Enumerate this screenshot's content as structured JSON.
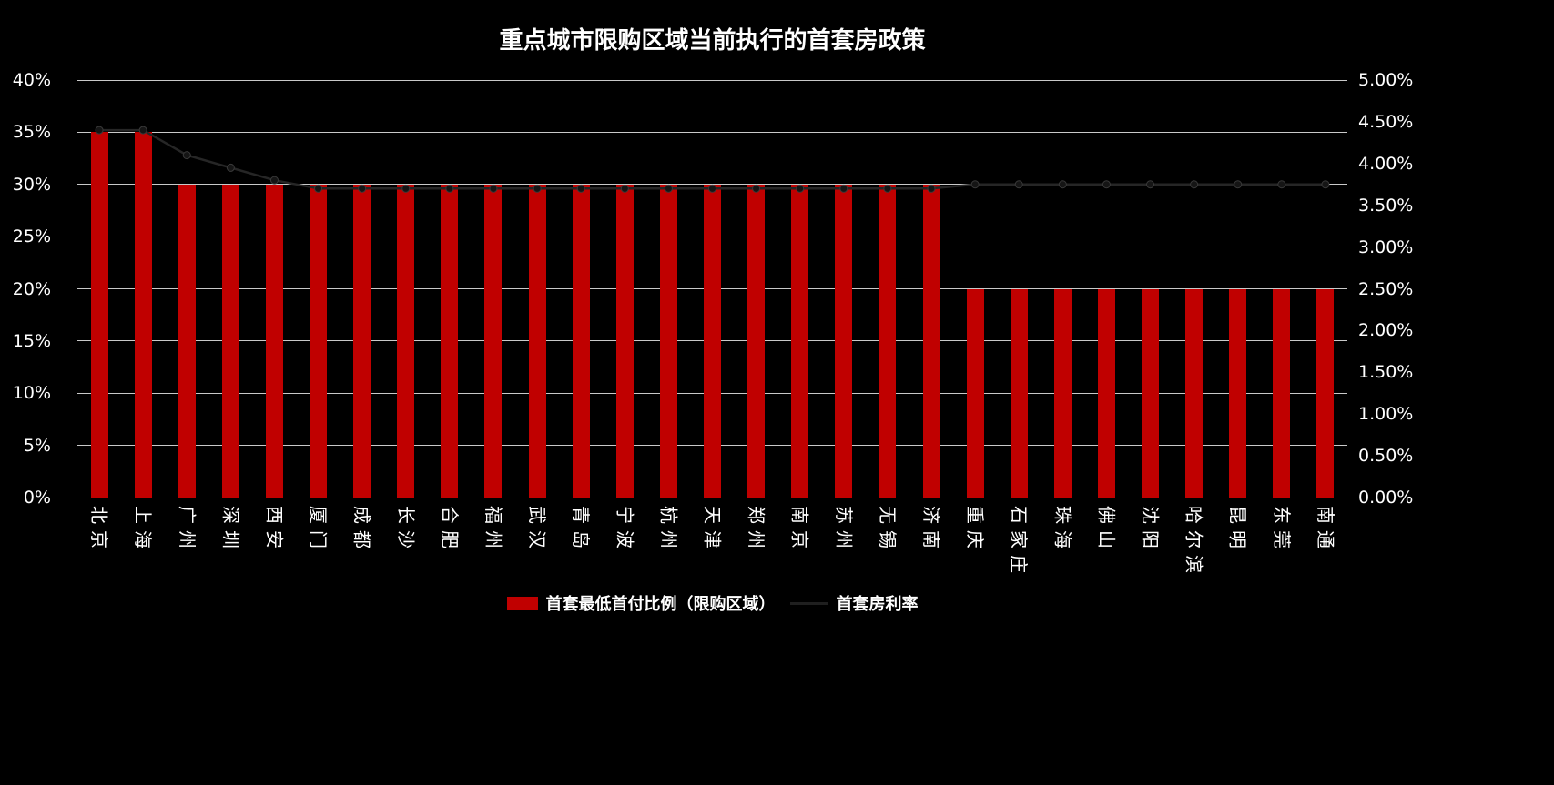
{
  "page": {
    "background_color": "#000000",
    "text_color": "#FFFFFF"
  },
  "colors": {
    "bar": "#C00000",
    "rate_line": "#262626",
    "gridline": "#C9C9C9"
  },
  "legend": {
    "items": [
      {
        "label": "首套最低首付比例（限购区域）",
        "sample": "bar-swatch"
      },
      {
        "label": "首套房利率",
        "sample": "line-swatch"
      }
    ]
  },
  "chart_data": {
    "type": "combo-bar-line",
    "title": "重点城市限购区域当前执行的首套房政策",
    "categories": [
      "北京",
      "上海",
      "广州",
      "深圳",
      "西安",
      "厦门",
      "成都",
      "长沙",
      "合肥",
      "福州",
      "武汉",
      "青岛",
      "宁波",
      "杭州",
      "天津",
      "郑州",
      "南京",
      "苏州",
      "无锡",
      "济南",
      "重庆",
      "石家庄",
      "珠海",
      "佛山",
      "沈阳",
      "哈尔滨",
      "昆明",
      "东莞",
      "南通"
    ],
    "series": [
      {
        "name": "首套最低首付比例（限购区域）",
        "type": "bar",
        "axis": "left",
        "color": "#C00000",
        "values": [
          35,
          35,
          30,
          30,
          30,
          30,
          30,
          30,
          30,
          30,
          30,
          30,
          30,
          30,
          30,
          30,
          30,
          30,
          30,
          30,
          20,
          20,
          20,
          20,
          20,
          20,
          20,
          20,
          20
        ]
      },
      {
        "name": "首套房利率",
        "type": "line",
        "axis": "right",
        "color": "#262626",
        "values": [
          4.4,
          4.4,
          4.1,
          3.95,
          3.8,
          3.7,
          3.7,
          3.7,
          3.7,
          3.7,
          3.7,
          3.7,
          3.7,
          3.7,
          3.7,
          3.7,
          3.7,
          3.7,
          3.7,
          3.7,
          3.75,
          3.75,
          3.75,
          3.75,
          3.75,
          3.75,
          3.75,
          3.75,
          3.75
        ]
      }
    ],
    "left_axis": {
      "min": 0,
      "max": 40,
      "step": 5,
      "ticks": [
        "0%",
        "5%",
        "10%",
        "15%",
        "20%",
        "25%",
        "30%",
        "35%",
        "40%"
      ]
    },
    "right_axis": {
      "min": 0,
      "max": 5,
      "step": 0.5,
      "ticks": [
        "0.00%",
        "0.50%",
        "1.00%",
        "1.50%",
        "2.00%",
        "2.50%",
        "3.00%",
        "3.50%",
        "4.00%",
        "4.50%",
        "5.00%"
      ]
    },
    "grid": true,
    "legend_position": "bottom"
  }
}
